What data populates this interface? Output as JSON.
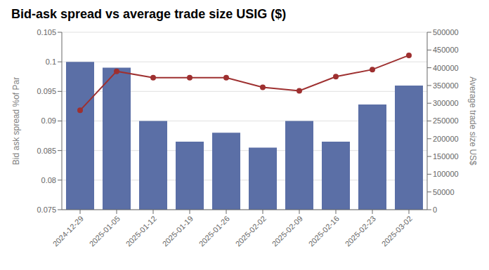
{
  "chart_data": {
    "type": "bar",
    "title": "Bid-ask spread vs average trade size USIG ($)",
    "categories": [
      "2024-12-29",
      "2025-01-05",
      "2025-01-12",
      "2025-01-19",
      "2025-01-26",
      "2025-02-02",
      "2025-02-09",
      "2025-02-16",
      "2025-02-23",
      "2025-03-02"
    ],
    "series": [
      {
        "type": "bar",
        "color": "#5b6fa6",
        "values": [
          0.1,
          0.099,
          0.09,
          0.0865,
          0.088,
          0.0855,
          0.09,
          0.0865,
          0.0928,
          0.096
        ]
      },
      {
        "type": "line",
        "color": "#9e3030",
        "axis": "y2",
        "marker": "circle",
        "values": [
          280000,
          390000,
          372000,
          372000,
          372000,
          345000,
          335000,
          375000,
          395000,
          435000
        ]
      }
    ],
    "ylabel": "Bid ask spread %of  Par",
    "y2label": "Average trade size US$",
    "ylim": [
      0.075,
      0.105
    ],
    "yticks": [
      0.075,
      0.08,
      0.085,
      0.09,
      0.095,
      0.1,
      0.105
    ],
    "y2lim": [
      0,
      500000
    ],
    "y2ticks": [
      0,
      50000,
      100000,
      150000,
      200000,
      250000,
      300000,
      350000,
      400000,
      450000,
      500000
    ],
    "grid": true
  }
}
